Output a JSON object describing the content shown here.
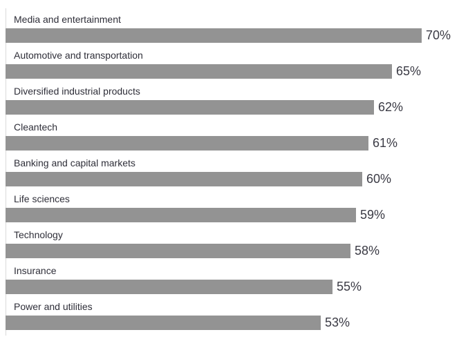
{
  "chart_data": {
    "type": "bar",
    "orientation": "horizontal",
    "categories": [
      "Media and entertainment",
      "Automotive and transportation",
      "Diversified industrial products",
      "Cleantech",
      "Banking and capital markets",
      "Life sciences",
      "Technology",
      "Insurance",
      "Power and utilities"
    ],
    "values": [
      70,
      65,
      62,
      61,
      60,
      59,
      58,
      55,
      53
    ],
    "value_labels": [
      "70%",
      "65%",
      "62%",
      "61%",
      "60%",
      "59%",
      "58%",
      "55%",
      "53%"
    ],
    "xlim": [
      0,
      70
    ],
    "grid": false,
    "bar_color": "#939393",
    "label_color": "#2e2e38"
  }
}
